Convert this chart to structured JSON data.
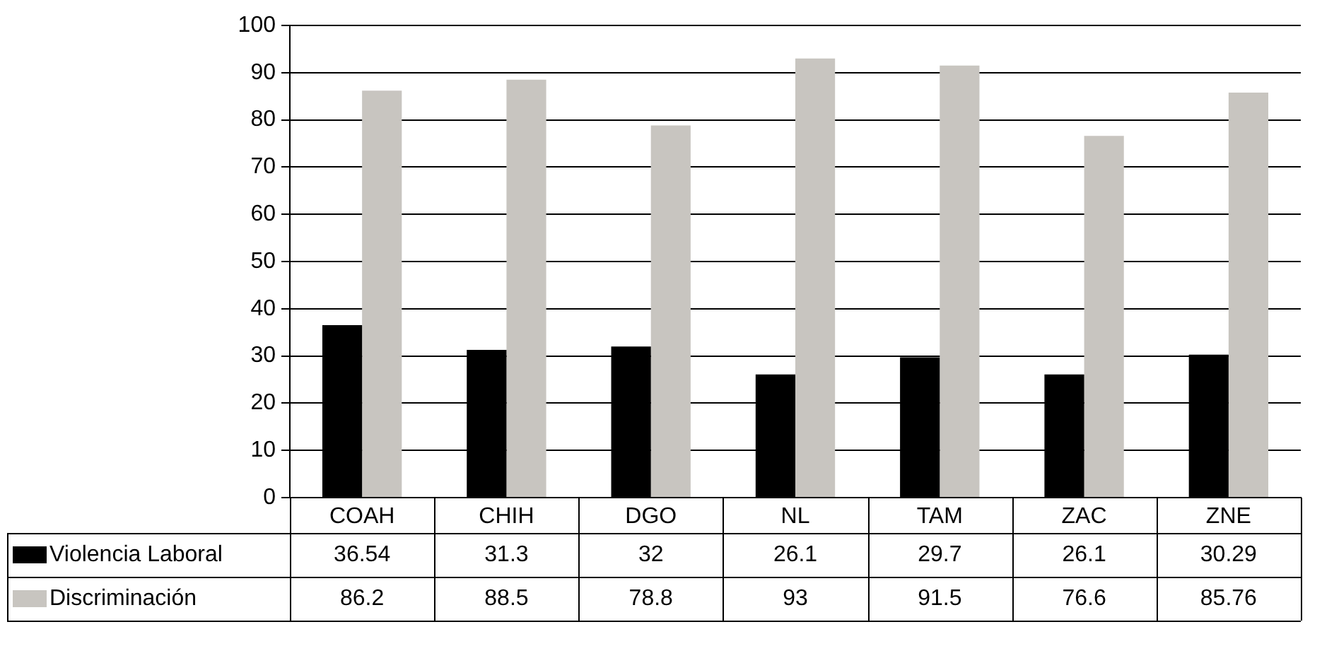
{
  "chart_data": {
    "type": "bar",
    "categories": [
      "COAH",
      "CHIH",
      "DGO",
      "NL",
      "TAM",
      "ZAC",
      "ZNE"
    ],
    "series": [
      {
        "name": "Violencia Laboral",
        "color": "#000000",
        "values": [
          36.54,
          31.3,
          32,
          26.1,
          29.7,
          26.1,
          30.29
        ]
      },
      {
        "name": "Discriminación",
        "color": "#c8c5c0",
        "values": [
          86.2,
          88.5,
          78.8,
          93,
          91.5,
          76.6,
          85.76
        ]
      }
    ],
    "ylim": [
      0,
      100
    ],
    "yticks": [
      0,
      10,
      20,
      30,
      40,
      50,
      60,
      70,
      80,
      90,
      100
    ],
    "grid": "y",
    "legend": "bottom",
    "data_labels": true
  }
}
